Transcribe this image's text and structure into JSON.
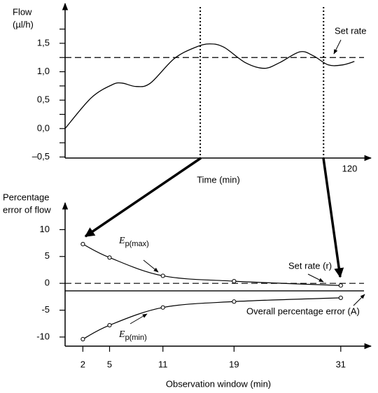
{
  "chart_data": [
    {
      "type": "line",
      "y_label_lines": [
        "Flow",
        "(µl/h)"
      ],
      "x_label": "Time   (min)",
      "x": [
        0,
        11,
        19.8,
        24,
        30,
        36,
        46,
        55,
        61,
        67,
        76,
        84,
        90.5,
        99,
        104.7,
        111,
        117,
        122
      ],
      "values": [
        0.0,
        0.54,
        0.77,
        0.8,
        0.74,
        0.8,
        1.23,
        1.43,
        1.49,
        1.43,
        1.16,
        1.06,
        1.16,
        1.35,
        1.28,
        1.12,
        1.12,
        1.18
      ],
      "color": "#000000",
      "set_rate": 1.25,
      "set_rate_label": "Set rate",
      "vlines": [
        57,
        109
      ],
      "xlim": [
        0,
        129
      ],
      "xticks": [
        120
      ],
      "ylim": [
        -0.5,
        2.2
      ],
      "yticks": [
        {
          "value": -0.5,
          "label": "–0,5"
        },
        {
          "value": 0,
          "label": "0,0"
        },
        {
          "value": 0.5,
          "label": "0,5"
        },
        {
          "value": 1,
          "label": "1,0"
        },
        {
          "value": 1.5,
          "label": "1,5"
        }
      ],
      "yminorticks": [
        -0.25,
        0.25,
        0.75,
        1.25,
        1.75
      ]
    },
    {
      "type": "line",
      "y_label_lines": [
        "Percentage",
        "error of flow"
      ],
      "x_label": "Observation window   (min)",
      "x": [
        2,
        5,
        11,
        19,
        31
      ],
      "series": [
        {
          "label": {
            "symbol": "E",
            "subscript": "p(max)"
          },
          "color": "#000000",
          "values": [
            7.3,
            4.8,
            1.4,
            0.4,
            -0.4
          ]
        },
        {
          "label": {
            "symbol": "E",
            "subscript": "p(min)"
          },
          "color": "#000000",
          "values": [
            -10.4,
            -7.8,
            -4.5,
            -3.4,
            -2.7
          ]
        }
      ],
      "set_rate": 0,
      "set_rate_label": "Set rate (r)",
      "overall_error": -1.4,
      "overall_error_label": "Overall percentage error (A)",
      "xlim": [
        0,
        34.4
      ],
      "xticks": [
        2,
        5,
        11,
        19,
        31
      ],
      "ylim": [
        -11.7,
        15
      ],
      "yticks": [
        -10,
        -5,
        0,
        5,
        10
      ]
    }
  ]
}
